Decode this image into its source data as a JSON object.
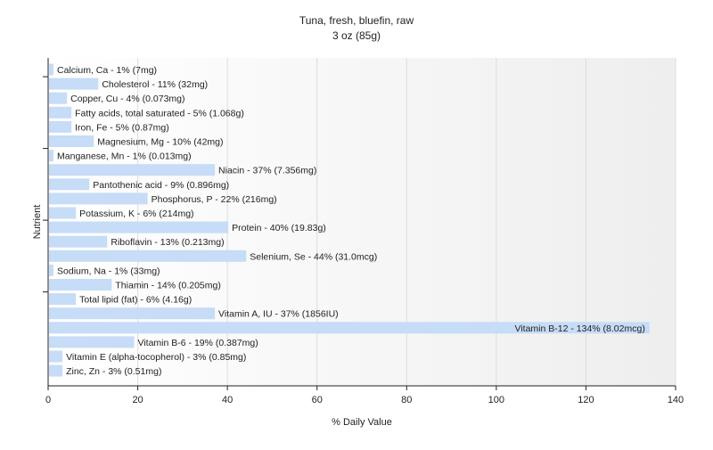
{
  "chart_data": {
    "type": "bar",
    "orientation": "horizontal",
    "title": "Tuna, fresh, bluefin, raw",
    "subtitle": "3 oz (85g)",
    "xlabel": "% Daily Value",
    "ylabel": "Nutrient",
    "xlim": [
      0,
      140
    ],
    "xticks": [
      0,
      20,
      40,
      60,
      80,
      100,
      120,
      140
    ],
    "grid": true,
    "legend": "none",
    "bar_color": "#c6dcf7",
    "bars": [
      {
        "name": "Calcium, Ca",
        "value": 1,
        "label": "Calcium, Ca - 1% (7mg)"
      },
      {
        "name": "Cholesterol",
        "value": 11,
        "label": "Cholesterol - 11% (32mg)"
      },
      {
        "name": "Copper, Cu",
        "value": 4,
        "label": "Copper, Cu - 4% (0.073mg)"
      },
      {
        "name": "Fatty acids, total saturated",
        "value": 5,
        "label": "Fatty acids, total saturated - 5% (1.068g)"
      },
      {
        "name": "Iron, Fe",
        "value": 5,
        "label": "Iron, Fe - 5% (0.87mg)"
      },
      {
        "name": "Magnesium, Mg",
        "value": 10,
        "label": "Magnesium, Mg - 10% (42mg)"
      },
      {
        "name": "Manganese, Mn",
        "value": 1,
        "label": "Manganese, Mn - 1% (0.013mg)"
      },
      {
        "name": "Niacin",
        "value": 37,
        "label": "Niacin - 37% (7.356mg)"
      },
      {
        "name": "Pantothenic acid",
        "value": 9,
        "label": "Pantothenic acid - 9% (0.896mg)"
      },
      {
        "name": "Phosphorus, P",
        "value": 22,
        "label": "Phosphorus, P - 22% (216mg)"
      },
      {
        "name": "Potassium, K",
        "value": 6,
        "label": "Potassium, K - 6% (214mg)"
      },
      {
        "name": "Protein",
        "value": 40,
        "label": "Protein - 40% (19.83g)"
      },
      {
        "name": "Riboflavin",
        "value": 13,
        "label": "Riboflavin - 13% (0.213mg)"
      },
      {
        "name": "Selenium, Se",
        "value": 44,
        "label": "Selenium, Se - 44% (31.0mcg)"
      },
      {
        "name": "Sodium, Na",
        "value": 1,
        "label": "Sodium, Na - 1% (33mg)"
      },
      {
        "name": "Thiamin",
        "value": 14,
        "label": "Thiamin - 14% (0.205mg)"
      },
      {
        "name": "Total lipid (fat)",
        "value": 6,
        "label": "Total lipid (fat) - 6% (4.16g)"
      },
      {
        "name": "Vitamin A, IU",
        "value": 37,
        "label": "Vitamin A, IU - 37% (1856IU)"
      },
      {
        "name": "Vitamin B-12",
        "value": 134,
        "label": "Vitamin B-12 - 134% (8.02mcg)"
      },
      {
        "name": "Vitamin B-6",
        "value": 19,
        "label": "Vitamin B-6 - 19% (0.387mg)"
      },
      {
        "name": "Vitamin E (alpha-tocopherol)",
        "value": 3,
        "label": "Vitamin E (alpha-tocopherol) - 3% (0.85mg)"
      },
      {
        "name": "Zinc, Zn",
        "value": 3,
        "label": "Zinc, Zn - 3% (0.51mg)"
      }
    ]
  }
}
